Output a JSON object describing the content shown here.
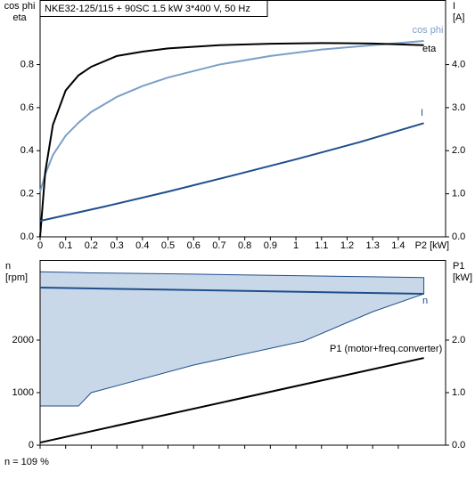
{
  "chart_data": [
    {
      "type": "line",
      "title": "NKE32-125/115 + 90SC   1.5 kW   3*400 V, 50 Hz",
      "ylabel": [
        "cos phi",
        "eta"
      ],
      "y2label": [
        "I",
        "[A]"
      ],
      "xlabel": "P2 [kW]",
      "xlim": [
        0,
        1.585
      ],
      "xticks": [
        0,
        0.1,
        0.2,
        0.3,
        0.4,
        0.5,
        0.6,
        0.7,
        0.8,
        0.9,
        1,
        1.1,
        1.2,
        1.3,
        1.4
      ],
      "ylim": [
        0,
        1.1
      ],
      "yticks": [
        {
          "value": 0,
          "label": "0.0"
        },
        0.2,
        0.4,
        0.6,
        0.8
      ],
      "y2lim": [
        0,
        5.5
      ],
      "y2ticks": [
        {
          "value": 0,
          "label": "0.0"
        },
        {
          "value": 1,
          "label": "1.0"
        },
        {
          "value": 2,
          "label": "2.0"
        },
        {
          "value": 3,
          "label": "3.0"
        },
        {
          "value": 4,
          "label": "4.0"
        }
      ],
      "series": [
        {
          "name": "cos phi",
          "color": "#7b9fc7",
          "x": [
            0,
            0.02,
            0.05,
            0.1,
            0.15,
            0.2,
            0.3,
            0.4,
            0.5,
            0.7,
            0.9,
            1.1,
            1.3,
            1.5
          ],
          "values": [
            0.21,
            0.29,
            0.38,
            0.47,
            0.53,
            0.58,
            0.65,
            0.7,
            0.74,
            0.8,
            0.84,
            0.87,
            0.89,
            0.91
          ]
        },
        {
          "name": "eta",
          "color": "#000000",
          "x": [
            0,
            0.02,
            0.05,
            0.1,
            0.15,
            0.2,
            0.3,
            0.4,
            0.5,
            0.7,
            0.9,
            1.1,
            1.3,
            1.5
          ],
          "values": [
            0,
            0.3,
            0.52,
            0.68,
            0.75,
            0.79,
            0.84,
            0.86,
            0.875,
            0.89,
            0.897,
            0.9,
            0.898,
            0.89
          ]
        },
        {
          "name": "I",
          "color": "#1f4e8c",
          "axis": "y2",
          "x": [
            0,
            0.25,
            0.5,
            0.75,
            1.0,
            1.25,
            1.5
          ],
          "values": [
            0.37,
            0.7,
            1.05,
            1.42,
            1.8,
            2.2,
            2.64
          ]
        }
      ]
    },
    {
      "type": "line",
      "ylabel": [
        "n",
        "[rpm]"
      ],
      "y2label": [
        "P1",
        "[kW]"
      ],
      "xlim": [
        0,
        1.585
      ],
      "ylim": [
        0,
        3525
      ],
      "yticks": [
        0,
        1000,
        2000
      ],
      "y2lim": [
        0,
        3.525
      ],
      "y2ticks": [
        {
          "value": 0,
          "label": "0.0"
        },
        {
          "value": 1,
          "label": "1.0"
        },
        {
          "value": 2,
          "label": "2.0"
        }
      ],
      "band": {
        "color": "#c9d8e8",
        "x": [
          0,
          0.15,
          0.2,
          0.6,
          1.03,
          1.3,
          1.5
        ],
        "upper": [
          3300,
          3285,
          3280,
          3255,
          3225,
          3205,
          3190
        ],
        "lower": [
          745,
          745,
          1000,
          1525,
          1980,
          2540,
          2880
        ]
      },
      "series": [
        {
          "name": "n",
          "color": "#1f4e8c",
          "x": [
            0,
            1.5
          ],
          "values": [
            3000,
            2880
          ]
        },
        {
          "name": "P1 (motor+freq.converter)",
          "color": "#000000",
          "axis": "y2",
          "x": [
            0,
            1.5
          ],
          "values": [
            0.05,
            1.66
          ]
        }
      ]
    }
  ],
  "note": "n = 109 %"
}
